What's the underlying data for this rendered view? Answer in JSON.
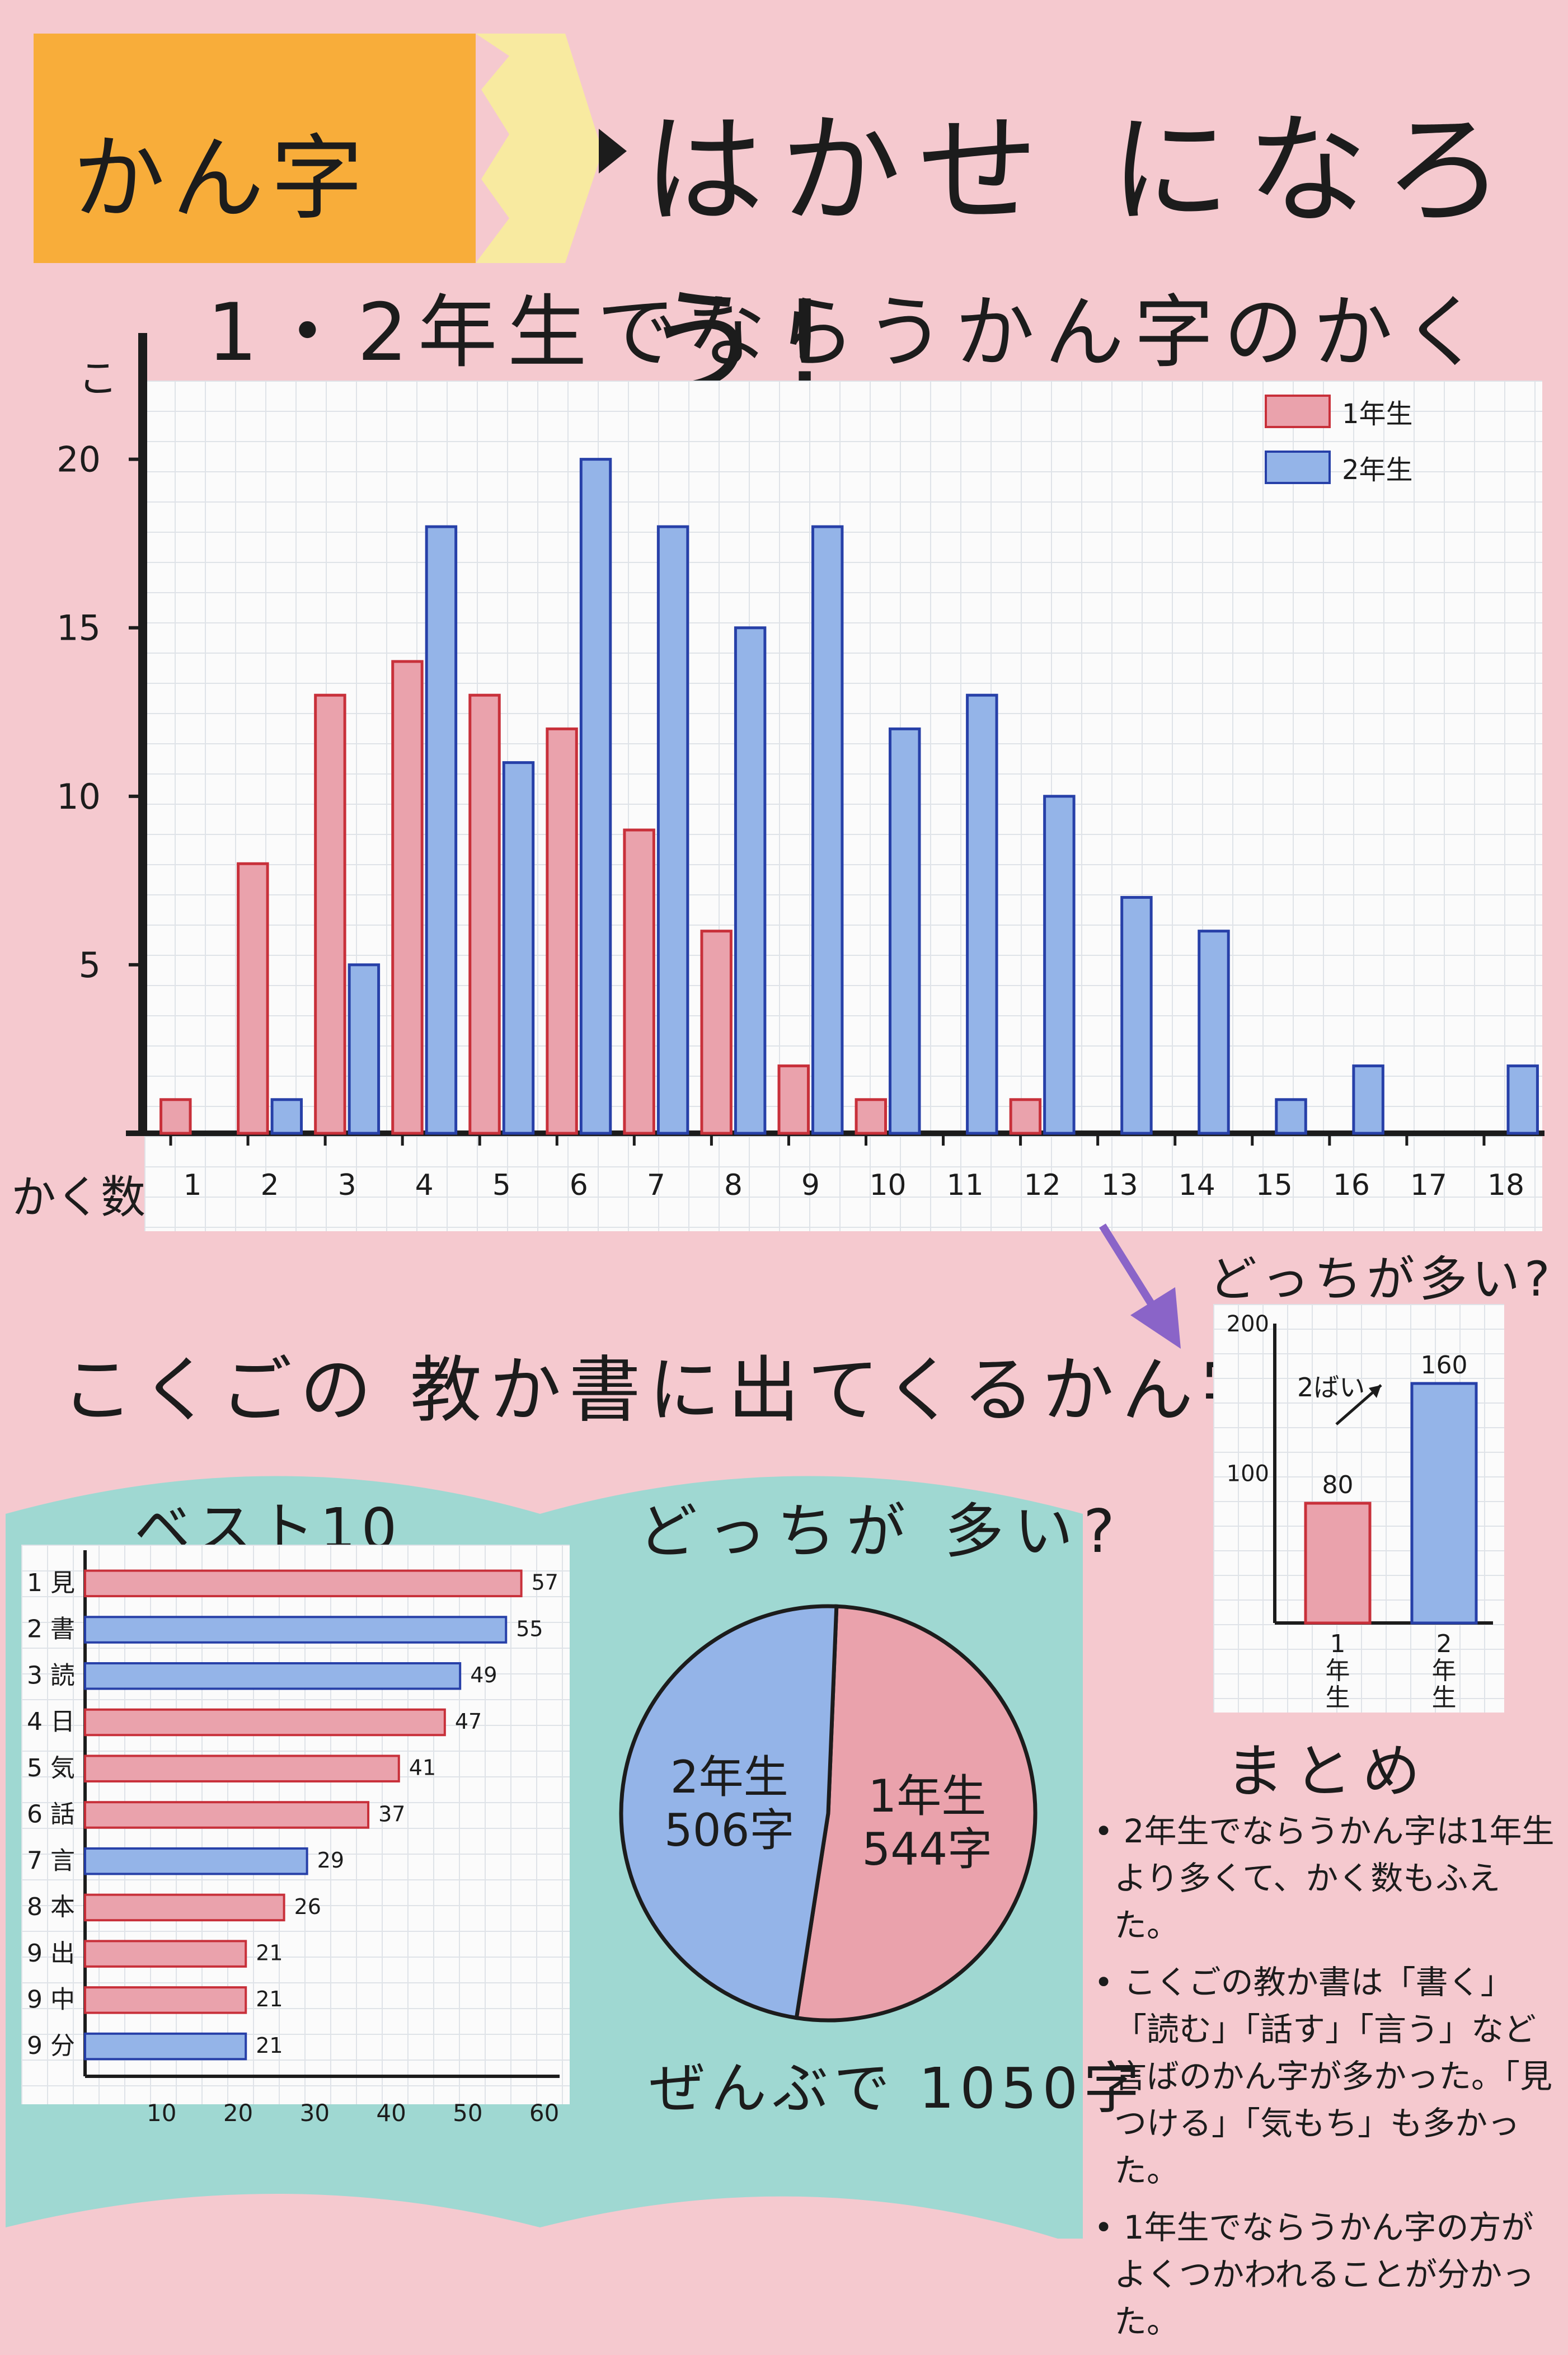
{
  "title": {
    "pencil_text": "かん字",
    "rest": "はかせ になろう!"
  },
  "main_chart": {
    "heading": "1・2年生でならうかん字のかく数",
    "unit_label": "こ",
    "x_axis_label": "かく数",
    "legend": [
      "1年生",
      "2年生"
    ]
  },
  "section_heading": "こくごの 教か書に出てくるかん字",
  "best10": {
    "title": "ベスト10"
  },
  "pie": {
    "title": "どっちが 多い?",
    "total": "ぜんぶで 1050字"
  },
  "comparison": {
    "title": "どっちが多い?",
    "note": "2ばい"
  },
  "summary": {
    "title": "まとめ",
    "items": [
      "• 2年生でならうかん字は1年生より多くて、かく数もふえた。",
      "• こくごの教か書は「書く」「読む」「話す」「言う」など 言ばのかん字が多かった。「見つける」「気もち」も多かった。",
      "• 1年生でならうかん字の方がよくつかわれることが分かった。"
    ]
  },
  "colors": {
    "red": "#c8303a",
    "red_fill": "#eaa2ac",
    "blue": "#2740a8",
    "blue_fill": "#94b4e8",
    "teal": "#9fd8d2",
    "pencil_orange": "#f8ad3a",
    "pencil_cream": "#f8eaa0"
  },
  "chart_data": [
    {
      "type": "bar",
      "title": "1・2年生でならうかん字のかく数",
      "xlabel": "かく数",
      "ylabel": "こ",
      "categories": [
        "1",
        "2",
        "3",
        "4",
        "5",
        "6",
        "7",
        "8",
        "9",
        "10",
        "11",
        "12",
        "13",
        "14",
        "15",
        "16",
        "17",
        "18"
      ],
      "series": [
        {
          "name": "1年生",
          "values": [
            1,
            8,
            13,
            14,
            13,
            12,
            9,
            6,
            2,
            1,
            0,
            1,
            0,
            0,
            0,
            0,
            0,
            0
          ]
        },
        {
          "name": "2年生",
          "values": [
            0,
            1,
            5,
            18,
            11,
            20,
            18,
            15,
            18,
            12,
            13,
            10,
            7,
            6,
            1,
            2,
            0,
            2
          ]
        }
      ],
      "yticks": [
        5,
        10,
        15,
        20
      ],
      "ylim": [
        0,
        23
      ],
      "legend": "top-right",
      "grid": true
    },
    {
      "type": "bar",
      "orientation": "horizontal",
      "title": "ベスト10",
      "categories": [
        "1 見",
        "2 書",
        "3 読",
        "4 日",
        "5 気",
        "6 話",
        "7 言",
        "8 本",
        "9 出",
        "9 中",
        "9 分"
      ],
      "values": [
        57,
        55,
        49,
        47,
        41,
        37,
        29,
        26,
        21,
        21,
        21
      ],
      "bar_colors": [
        "red",
        "blue",
        "blue",
        "red",
        "red",
        "red",
        "blue",
        "red",
        "red",
        "red",
        "blue"
      ],
      "xticks": [
        10,
        20,
        30,
        40,
        50,
        60
      ],
      "xlim": [
        0,
        62
      ],
      "grid": true
    },
    {
      "type": "pie",
      "title": "どっちが 多い?",
      "labels": [
        "1年生",
        "2年生"
      ],
      "values": [
        544,
        506
      ],
      "slice_labels": [
        "1年生\n544字",
        "2年生\n506字"
      ],
      "total_label": "ぜんぶで 1050字"
    },
    {
      "type": "bar",
      "title": "どっちが多い?",
      "categories": [
        "1年生",
        "2年生"
      ],
      "values": [
        80,
        160
      ],
      "yticks": [
        100,
        200
      ],
      "ylim": [
        0,
        200
      ],
      "annotation": "2ばい",
      "grid": true
    }
  ]
}
